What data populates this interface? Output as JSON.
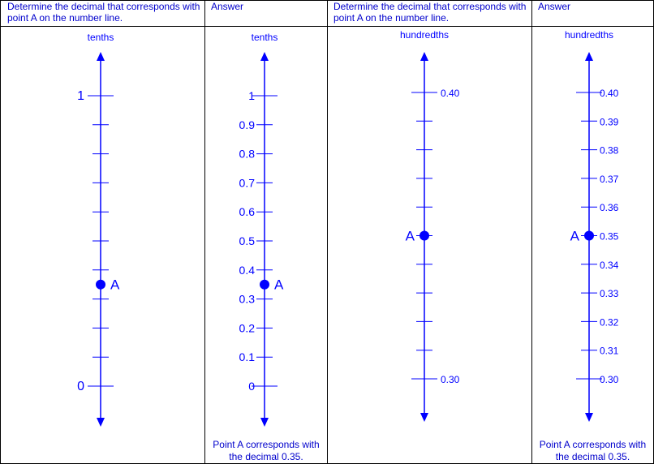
{
  "columns": [
    {
      "header": "Determine the decimal that corresponds with point A on the number line.",
      "scale_label": "tenths",
      "point": {
        "label": "A",
        "value": 0.35
      },
      "tick_labels": [
        {
          "value": 0,
          "text": "0"
        },
        {
          "value": 1,
          "text": "1"
        }
      ],
      "footer": ""
    },
    {
      "header": "Answer",
      "scale_label": "tenths",
      "point": {
        "label": "A",
        "value": 0.35
      },
      "tick_labels": [
        {
          "value": 0,
          "text": "0"
        },
        {
          "value": 0.1,
          "text": "0.1"
        },
        {
          "value": 0.2,
          "text": "0.2"
        },
        {
          "value": 0.3,
          "text": "0.3"
        },
        {
          "value": 0.4,
          "text": "0.4"
        },
        {
          "value": 0.5,
          "text": "0.5"
        },
        {
          "value": 0.6,
          "text": "0.6"
        },
        {
          "value": 0.7,
          "text": "0.7"
        },
        {
          "value": 0.8,
          "text": "0.8"
        },
        {
          "value": 0.9,
          "text": "0.9"
        },
        {
          "value": 1,
          "text": "1"
        }
      ],
      "footer": "Point A corresponds with the decimal 0.35."
    },
    {
      "header": "Determine the decimal that corresponds with point A on the number line.",
      "scale_label": "hundredths",
      "point": {
        "label": "A",
        "value": 0.35
      },
      "tick_labels": [
        {
          "value": 0.3,
          "text": "0.30"
        },
        {
          "value": 0.4,
          "text": "0.40"
        }
      ],
      "footer": ""
    },
    {
      "header": "Answer",
      "scale_label": "hundredths",
      "point": {
        "label": "A",
        "value": 0.35
      },
      "tick_labels": [
        {
          "value": 0.3,
          "text": "0.30"
        },
        {
          "value": 0.31,
          "text": "0.31"
        },
        {
          "value": 0.32,
          "text": "0.32"
        },
        {
          "value": 0.33,
          "text": "0.33"
        },
        {
          "value": 0.34,
          "text": "0.34"
        },
        {
          "value": 0.35,
          "text": "0.35"
        },
        {
          "value": 0.36,
          "text": "0.36"
        },
        {
          "value": 0.37,
          "text": "0.37"
        },
        {
          "value": 0.38,
          "text": "0.38"
        },
        {
          "value": 0.39,
          "text": "0.39"
        },
        {
          "value": 0.4,
          "text": "0.40"
        }
      ],
      "footer": "Point A corresponds with the decimal 0.35."
    }
  ]
}
